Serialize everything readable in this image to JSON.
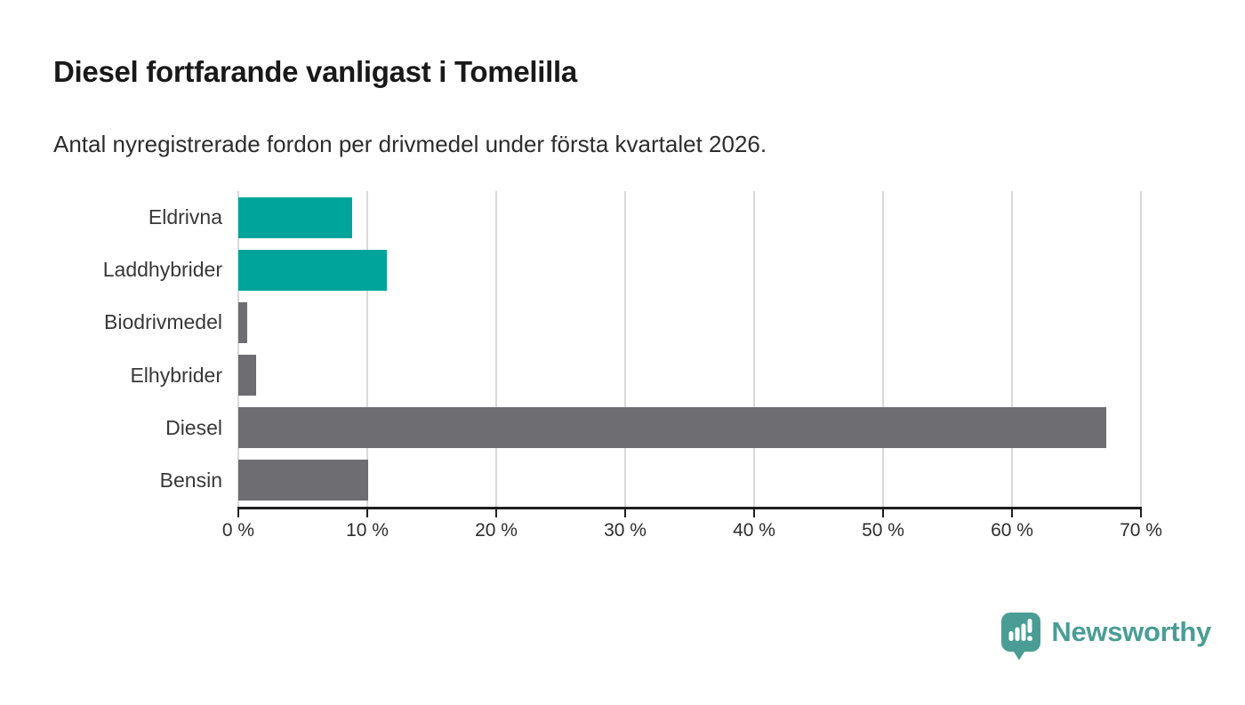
{
  "header": {
    "title": "Diesel fortfarande vanligast i Tomelilla",
    "subtitle": "Antal nyregistrerade fordon per drivmedel under första kvartalet 2026."
  },
  "chart_data": {
    "type": "bar",
    "orientation": "horizontal",
    "title": "Diesel fortfarande vanligast i Tomelilla",
    "subtitle": "Antal nyregistrerade fordon per drivmedel under första kvartalet 2026.",
    "categories": [
      "Eldrivna",
      "Laddhybrider",
      "Biodrivmedel",
      "Elhybrider",
      "Diesel",
      "Bensin"
    ],
    "values": [
      8.8,
      11.5,
      0.7,
      1.4,
      67.3,
      10.1
    ],
    "unit": "%",
    "bar_colors": [
      "#00a49a",
      "#00a49a",
      "#6d6d72",
      "#6d6d72",
      "#6d6d72",
      "#6d6d72"
    ],
    "highlight_color": "#00a49a",
    "default_color": "#6d6d72",
    "xlim": [
      0,
      70
    ],
    "xticks": [
      0,
      10,
      20,
      30,
      40,
      50,
      60,
      70
    ],
    "xtick_labels": [
      "0 %",
      "10 %",
      "20 %",
      "30 %",
      "40 %",
      "50 %",
      "60 %",
      "70 %"
    ],
    "grid": true,
    "grid_color": "#d9d9d9",
    "axis_color": "#1f1f1f",
    "category_label_color": "#383838",
    "tick_label_color": "#2d2d2d",
    "legend": "none"
  },
  "footer": {
    "brand": "Newsworthy",
    "brand_color": "#4a9d95",
    "logo_icon": "newsworthy-speech-bubble-chart-icon"
  }
}
